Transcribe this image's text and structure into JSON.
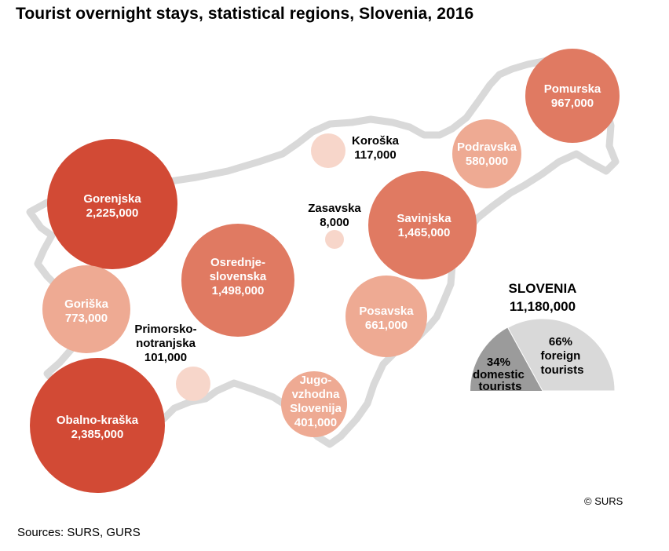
{
  "title": "Tourist overnight stays, statistical regions, Slovenia, 2016",
  "sources": "Sources: SURS, GURS",
  "copyright": "© SURS",
  "colors": {
    "large": "#d24a35",
    "medium": "#e07a62",
    "small": "#eeaa93",
    "tiny": "#f7d6ca",
    "outline": "#d9d9d9",
    "domestic": "#9b9b9b",
    "foreign": "#d9d9d9"
  },
  "regions": [
    {
      "name": "Gorenjska",
      "label_lines": [
        "Gorenjska",
        "2,225,000"
      ],
      "value": 2225000,
      "label_position": "inside",
      "color_class": "large"
    },
    {
      "name": "Obalno-kraška",
      "label_lines": [
        "Obalno-kraška",
        "2,385,000"
      ],
      "value": 2385000,
      "label_position": "inside",
      "color_class": "large"
    },
    {
      "name": "Osrednjeslovenska",
      "label_lines": [
        "Osrednje-",
        "slovenska",
        "1,498,000"
      ],
      "value": 1498000,
      "label_position": "inside",
      "color_class": "medium"
    },
    {
      "name": "Savinjska",
      "label_lines": [
        "Savinjska",
        "1,465,000"
      ],
      "value": 1465000,
      "label_position": "inside",
      "color_class": "medium"
    },
    {
      "name": "Pomurska",
      "label_lines": [
        "Pomurska",
        "967,000"
      ],
      "value": 967000,
      "label_position": "inside",
      "color_class": "medium"
    },
    {
      "name": "Goriška",
      "label_lines": [
        "Goriška",
        "773,000"
      ],
      "value": 773000,
      "label_position": "inside",
      "color_class": "small"
    },
    {
      "name": "Posavska",
      "label_lines": [
        "Posavska",
        "661,000"
      ],
      "value": 661000,
      "label_position": "inside",
      "color_class": "small"
    },
    {
      "name": "Podravska",
      "label_lines": [
        "Podravska",
        "580,000"
      ],
      "value": 580000,
      "label_position": "inside",
      "color_class": "small"
    },
    {
      "name": "Jugovzhodna Slovenija",
      "label_lines": [
        "Jugo-",
        "vzhodna",
        "Slovenija",
        "401,000"
      ],
      "value": 401000,
      "label_position": "inside",
      "color_class": "small"
    },
    {
      "name": "Koroška",
      "label_lines": [
        "Koroška",
        "117,000"
      ],
      "value": 117000,
      "label_position": "outside",
      "color_class": "tiny"
    },
    {
      "name": "Primorsko-notranjska",
      "label_lines": [
        "Primorsko-",
        "notranjska",
        "101,000"
      ],
      "value": 101000,
      "label_position": "outside",
      "color_class": "tiny"
    },
    {
      "name": "Zasavska",
      "label_lines": [
        "Zasavska",
        "8,000"
      ],
      "value": 8000,
      "label_position": "outside",
      "color_class": "tiny"
    }
  ],
  "slovenia": {
    "title": "SLOVENIA",
    "total": "11,180,000",
    "segments": [
      {
        "name": "domestic",
        "percent": 34,
        "label_lines": [
          "34%",
          "domestic",
          "tourists"
        ]
      },
      {
        "name": "foreign",
        "percent": 66,
        "label_lines": [
          "66%",
          "foreign",
          "tourists"
        ]
      }
    ]
  }
}
